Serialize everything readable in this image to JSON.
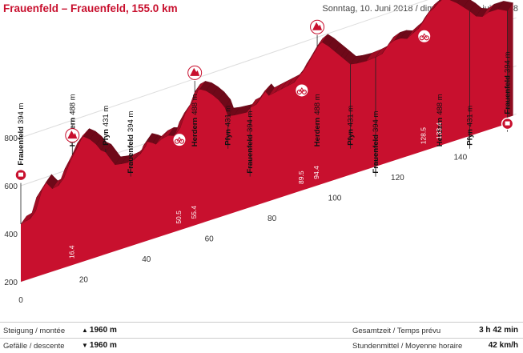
{
  "header": {
    "title": "Frauenfeld – Frauenfeld, 155.0 km",
    "date": "Sonntag, 10. Juni 2018 / dimanche le 10 juin 2018"
  },
  "footer": {
    "climb_label": "Steigung / montée",
    "climb_value": "1960 m",
    "descent_label": "Gefälle / descente",
    "descent_value": "1960 m",
    "time_label": "Gesamtzeit / Temps prévu",
    "time_value": "3 h 42 min",
    "speed_label": "Stundenmittel / Moyenne horaire",
    "speed_value": "42 km/h"
  },
  "colors": {
    "profile_red": "#c8102e",
    "profile_dark": "#8e0c20",
    "axis_grey": "#dddddd"
  },
  "chart_data": {
    "type": "area",
    "xlim": [
      0,
      155
    ],
    "ylim": [
      200,
      800
    ],
    "x_ticks": [
      0,
      20,
      40,
      60,
      80,
      100,
      120,
      140
    ],
    "y_ticks": [
      200,
      400,
      600,
      800
    ],
    "profile": [
      [
        0,
        440
      ],
      [
        3,
        450
      ],
      [
        5,
        530
      ],
      [
        8,
        580
      ],
      [
        10,
        545
      ],
      [
        12,
        550
      ],
      [
        14,
        610
      ],
      [
        16.4,
        660
      ],
      [
        18,
        700
      ],
      [
        20,
        720
      ],
      [
        22,
        700
      ],
      [
        24,
        670
      ],
      [
        25.5,
        640
      ],
      [
        27,
        625
      ],
      [
        30,
        560
      ],
      [
        32,
        555
      ],
      [
        34,
        552
      ],
      [
        36,
        555
      ],
      [
        38,
        570
      ],
      [
        39,
        600
      ],
      [
        40,
        615
      ],
      [
        42,
        600
      ],
      [
        43,
        590
      ],
      [
        45,
        605
      ],
      [
        47,
        610
      ],
      [
        49,
        600
      ],
      [
        50.5,
        650
      ],
      [
        52,
        680
      ],
      [
        54,
        710
      ],
      [
        55.4,
        755
      ],
      [
        57,
        760
      ],
      [
        59,
        745
      ],
      [
        61,
        720
      ],
      [
        63,
        690
      ],
      [
        65,
        650
      ],
      [
        66,
        610
      ],
      [
        68,
        605
      ],
      [
        72,
        600
      ],
      [
        73,
        615
      ],
      [
        75,
        620
      ],
      [
        76,
        640
      ],
      [
        78,
        660
      ],
      [
        79,
        640
      ],
      [
        81,
        645
      ],
      [
        83,
        650
      ],
      [
        85,
        655
      ],
      [
        87,
        660
      ],
      [
        89.5,
        690
      ],
      [
        91,
        720
      ],
      [
        92.5,
        745
      ],
      [
        94.4,
        780
      ],
      [
        96,
        790
      ],
      [
        98,
        765
      ],
      [
        100,
        735
      ],
      [
        102,
        705
      ],
      [
        103,
        690
      ],
      [
        105,
        660
      ],
      [
        107,
        655
      ],
      [
        110,
        652
      ],
      [
        113,
        655
      ],
      [
        115,
        660
      ],
      [
        117,
        690
      ],
      [
        119,
        700
      ],
      [
        121,
        700
      ],
      [
        123,
        690
      ],
      [
        125,
        705
      ],
      [
        126.5,
        715
      ],
      [
        128.5,
        750
      ],
      [
        130,
        770
      ],
      [
        131.5,
        780
      ],
      [
        133.4,
        800
      ],
      [
        135,
        810
      ],
      [
        137,
        790
      ],
      [
        139,
        770
      ],
      [
        141,
        745
      ],
      [
        143,
        720
      ],
      [
        145,
        690
      ],
      [
        147,
        680
      ],
      [
        149,
        690
      ],
      [
        152,
        690
      ],
      [
        155,
        670
      ]
    ],
    "places": [
      {
        "name": "Frauenfeld",
        "alt": "394 m",
        "km": 0,
        "type": "start"
      },
      {
        "name": "Herdern",
        "alt": "488 m",
        "km": 16.4,
        "type": "climb",
        "label": "16.4"
      },
      {
        "name": "Pfyn",
        "alt": "431 m",
        "km": 27,
        "type": "none"
      },
      {
        "name": "Frauenfeld",
        "alt": "394 m",
        "km": 35,
        "type": "none"
      },
      {
        "name": "Herdern",
        "alt": "488 m",
        "km": 55.4,
        "type": "climb",
        "label": "55.4"
      },
      {
        "name": "Pfyn",
        "alt": "431 m",
        "km": 66,
        "type": "none"
      },
      {
        "name": "Frauenfeld",
        "alt": "394 m",
        "km": 73,
        "type": "none"
      },
      {
        "name": "Herdern",
        "alt": "488 m",
        "km": 94.4,
        "type": "climb",
        "label": "94.4"
      },
      {
        "name": "Pfyn",
        "alt": "431 m",
        "km": 105,
        "type": "none"
      },
      {
        "name": "Frauenfeld",
        "alt": "394 m",
        "km": 113,
        "type": "none"
      },
      {
        "name": "Herdern",
        "alt": "488 m",
        "km": 133.4,
        "type": "climb",
        "label": "133.4"
      },
      {
        "name": "Pfyn",
        "alt": "431 m",
        "km": 143,
        "type": "none"
      },
      {
        "name": "Frauenfeld",
        "alt": "394 m",
        "km": 155,
        "type": "finish"
      }
    ],
    "sprints": [
      {
        "km": 50.5,
        "label": "50.5"
      },
      {
        "km": 89.5,
        "label": "89.5"
      },
      {
        "km": 128.5,
        "label": "128.5"
      }
    ]
  }
}
